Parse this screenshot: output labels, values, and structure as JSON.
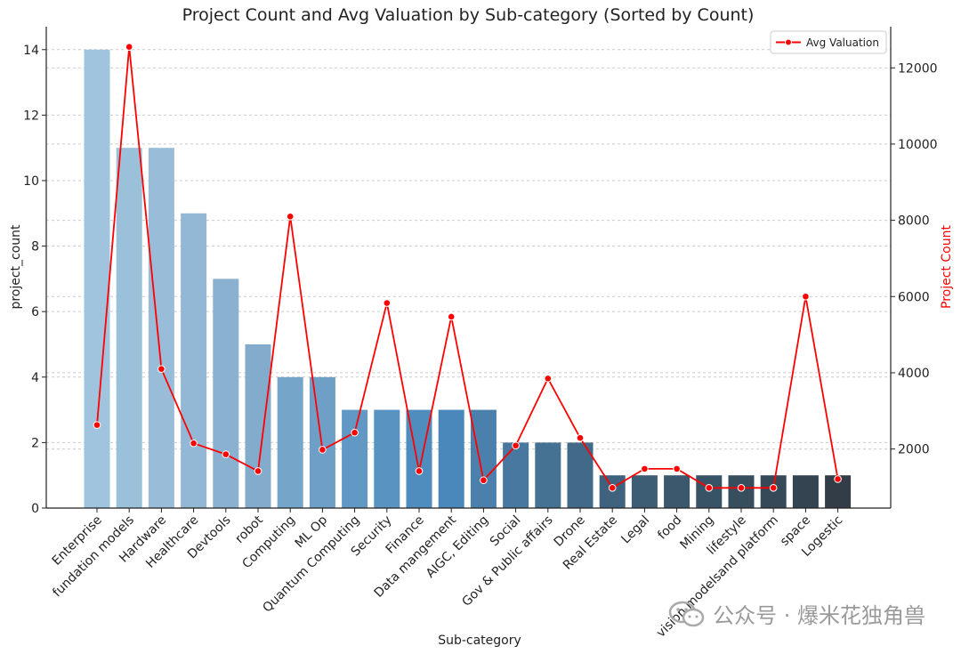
{
  "chart_data": {
    "type": "bar",
    "title": "Project Count and Avg Valuation by Sub-category (Sorted by Count)",
    "xlabel": "Sub-category",
    "ylabel": "project_count",
    "ylabel_right": "Project Count",
    "categories": [
      "Enterprise",
      "fundation models",
      "Hardware",
      "Healthcare",
      "Devtools",
      "robot",
      "Computing",
      "ML Op",
      "Quantum Computing",
      "Security",
      "Finance",
      "Data mangement",
      "AIGC, Editing",
      "Social",
      "Gov & Public affairs",
      "Drone",
      "Real Estate",
      "Legal",
      "food",
      "Mining",
      "lifestyle",
      "vision modelsand platform",
      "space",
      "Logestic"
    ],
    "series": [
      {
        "axis": "left",
        "kind": "bar",
        "values": [
          14,
          11,
          11,
          9,
          7,
          5,
          4,
          4,
          3,
          3,
          3,
          3,
          3,
          2,
          2,
          2,
          1,
          1,
          1,
          1,
          1,
          1,
          1,
          1
        ]
      },
      {
        "axis": "right",
        "kind": "line",
        "name": "Avg Valuation",
        "color": "#ff0000",
        "values": [
          2630,
          12550,
          4100,
          2150,
          1860,
          1420,
          8100,
          1980,
          2430,
          5830,
          1420,
          5470,
          1180,
          2090,
          3850,
          2290,
          980,
          1480,
          1480,
          980,
          980,
          980,
          6000,
          1210
        ]
      }
    ],
    "ylim": [
      0,
      14.7
    ],
    "ylim_right": [
      450,
      13080
    ],
    "yticks": [
      0,
      2,
      4,
      6,
      8,
      10,
      12,
      14
    ],
    "yticks_right": [
      2000,
      4000,
      6000,
      8000,
      10000,
      12000
    ],
    "bar_colors": [
      "#a1c4de",
      "#9bc0da",
      "#99bdd8",
      "#93b8d5",
      "#8ab1d0",
      "#82abcc",
      "#75a5c9",
      "#6d9fc7",
      "#6199c4",
      "#5893c1",
      "#4e8dbe",
      "#4a88bb",
      "#4b80ad",
      "#48789f",
      "#457193",
      "#416a88",
      "#3f637e",
      "#3d5d75",
      "#3b586d",
      "#395366",
      "#374e5f",
      "#364958",
      "#344450",
      "#323d47"
    ],
    "legend_position": "top-right",
    "grid": true
  },
  "watermark": {
    "text": "公众号 · 爆米花独角兽"
  }
}
